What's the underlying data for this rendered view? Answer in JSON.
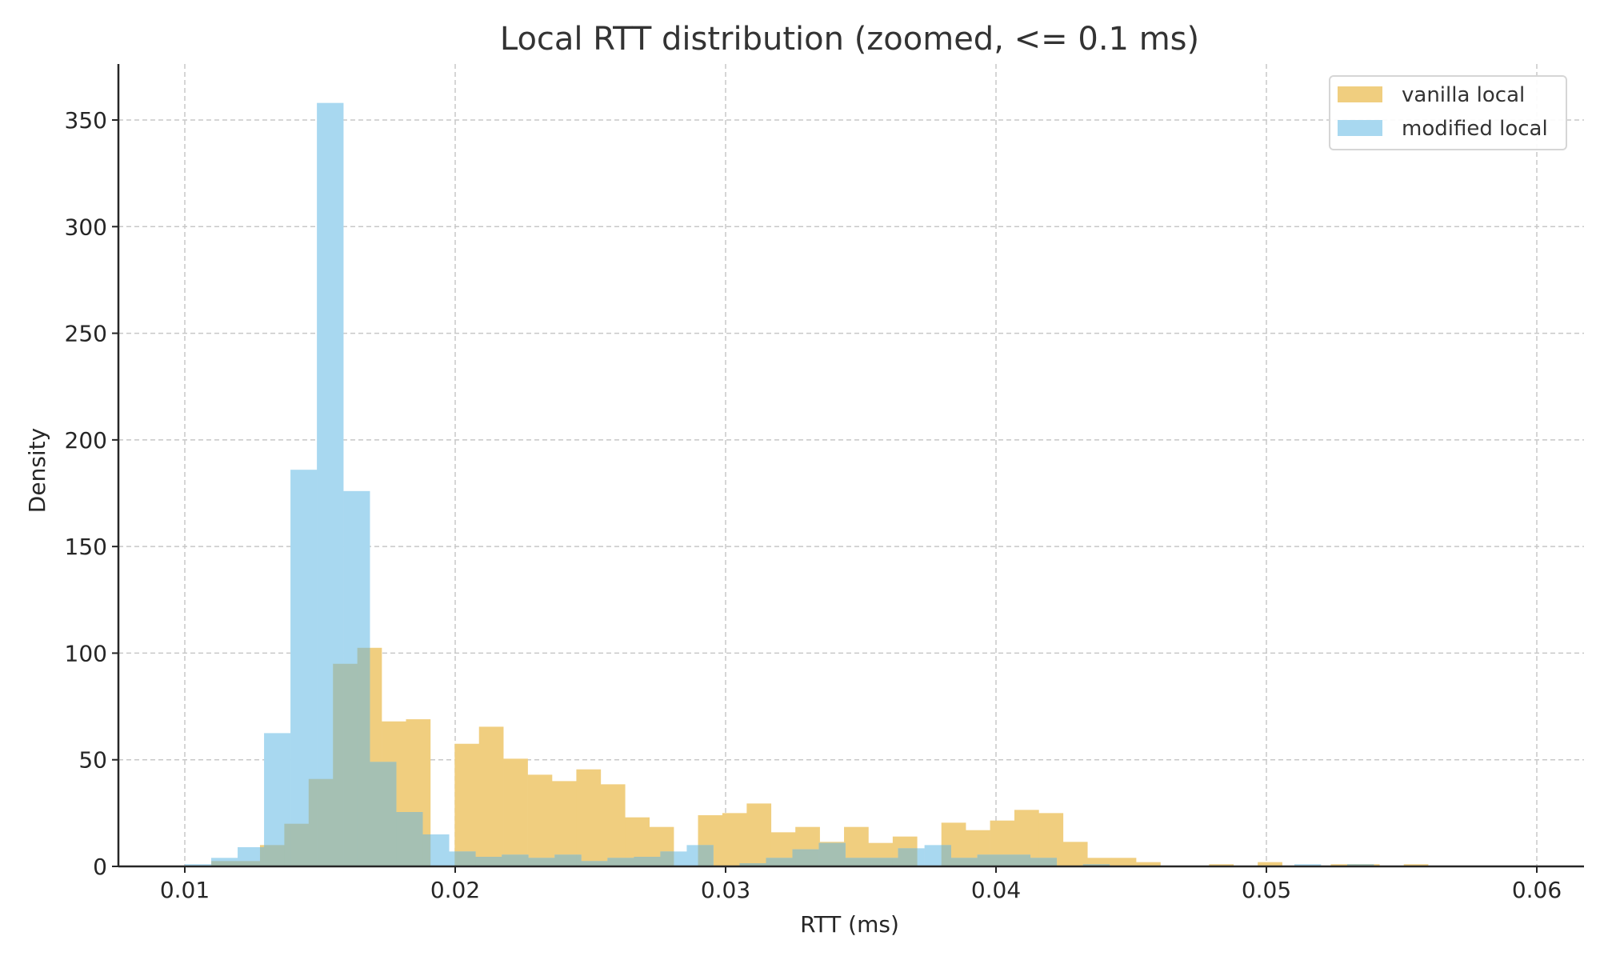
{
  "chart_data": {
    "type": "bar",
    "subtype": "overlaid-histogram",
    "title": "Local RTT distribution (zoomed, <= 0.1 ms)",
    "xlabel": "RTT (ms)",
    "ylabel": "Density",
    "xlim": [
      0.0081,
      0.0614
    ],
    "ylim": [
      0,
      375
    ],
    "x_ticks": [
      0.01,
      0.02,
      0.03,
      0.04,
      0.05,
      0.06
    ],
    "x_tick_labels": [
      "0.01",
      "0.02",
      "0.03",
      "0.04",
      "0.05",
      "0.06"
    ],
    "y_ticks": [
      0,
      50,
      100,
      150,
      200,
      250,
      300,
      350
    ],
    "y_tick_labels": [
      "0",
      "50",
      "100",
      "150",
      "200",
      "250",
      "300",
      "350"
    ],
    "grid": true,
    "legend_position": "upper right",
    "series": [
      {
        "name": "vanilla local",
        "color": "#f0ce7f",
        "alpha": 1,
        "bin_start": 0.01098,
        "bin_width": 0.0009,
        "values": [
          2.5,
          2.5,
          10,
          20,
          41,
          95,
          102.5,
          68,
          69,
          0,
          57.5,
          65.5,
          50.5,
          43,
          40,
          45.5,
          38.5,
          23,
          18.5,
          0,
          24,
          25,
          29.5,
          16,
          18.5,
          11.5,
          18.5,
          11,
          14,
          0,
          20.5,
          17,
          21.5,
          26.5,
          25,
          11.5,
          4,
          4,
          2,
          0,
          0,
          1,
          0,
          2,
          0,
          0,
          1,
          1,
          0,
          1
        ]
      },
      {
        "name": "modified local",
        "color": "#a8d8f0",
        "alpha": 1,
        "bin_start": 0.01,
        "bin_width": 0.000977,
        "values": [
          1,
          4,
          9,
          62.5,
          186,
          358,
          176,
          49,
          25.5,
          15,
          7,
          4.5,
          5.5,
          4,
          5.5,
          2.5,
          4,
          4.5,
          7,
          10,
          0,
          1.5,
          4,
          8,
          11,
          4,
          4,
          8.5,
          10,
          4,
          5.5,
          5.5,
          4,
          0,
          1,
          0,
          0,
          0,
          0,
          0,
          0,
          0,
          1,
          0,
          1,
          0,
          0,
          0,
          0,
          0
        ]
      }
    ],
    "overlap_color": "#a5c0b3"
  },
  "legend": {
    "items": [
      {
        "label": "vanilla local",
        "color": "#f0ce7f"
      },
      {
        "label": "modified local",
        "color": "#a8d8f0"
      }
    ]
  }
}
